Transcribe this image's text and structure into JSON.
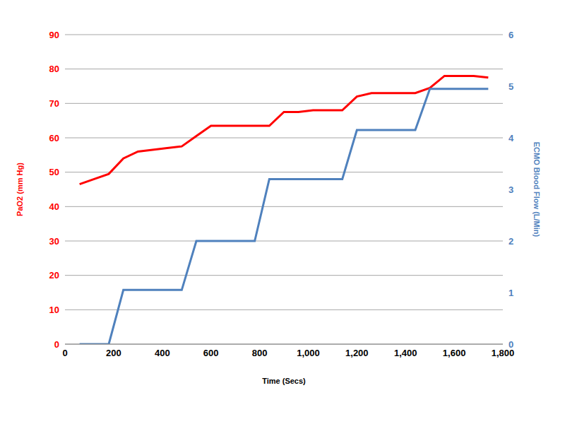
{
  "chart_data": {
    "type": "line",
    "x_label": "Time (Secs)",
    "y_label": "PaO2 (mm Hg)",
    "y2_label": "ECMO Blood Flow  (L/Min)",
    "x": [
      60,
      120,
      180,
      240,
      300,
      360,
      420,
      480,
      540,
      600,
      660,
      720,
      780,
      840,
      900,
      960,
      1020,
      1080,
      1140,
      1200,
      1260,
      1320,
      1380,
      1440,
      1500,
      1560,
      1620,
      1680,
      1740
    ],
    "xlim": [
      0,
      1800
    ],
    "xticks": [
      0,
      200,
      400,
      600,
      800,
      {
        "value": 1000,
        "label": "1,000"
      },
      {
        "value": 1200,
        "label": "1,200"
      },
      {
        "value": 1400,
        "label": "1,400"
      },
      {
        "value": 1600,
        "label": "1,600"
      },
      {
        "value": 1800,
        "label": "1,800"
      }
    ],
    "ylim": [
      0,
      90
    ],
    "yticks": [
      0,
      10,
      20,
      30,
      40,
      50,
      60,
      70,
      80,
      90
    ],
    "y2lim": [
      0,
      6
    ],
    "y2ticks": [
      0,
      1,
      2,
      3,
      4,
      5,
      6
    ],
    "grid": true,
    "series": [
      {
        "color": "#ff0000",
        "axis": "y",
        "values": [
          46.5,
          48,
          49.5,
          54,
          56,
          56.5,
          57,
          57.5,
          60.5,
          63.5,
          63.5,
          63.5,
          63.5,
          63.5,
          67.5,
          67.5,
          68,
          68,
          68,
          72,
          73,
          73,
          73,
          73,
          74.5,
          78,
          78,
          78,
          77.5
        ]
      },
      {
        "color": "#4f81bd",
        "axis": "y2",
        "values": [
          0,
          0,
          0,
          1.05,
          1.05,
          1.05,
          1.05,
          1.05,
          2,
          2,
          2,
          2,
          2,
          3.2,
          3.2,
          3.2,
          3.2,
          3.2,
          3.2,
          4.15,
          4.15,
          4.15,
          4.15,
          4.15,
          4.95,
          4.95,
          4.95,
          4.95,
          4.95
        ]
      }
    ]
  }
}
